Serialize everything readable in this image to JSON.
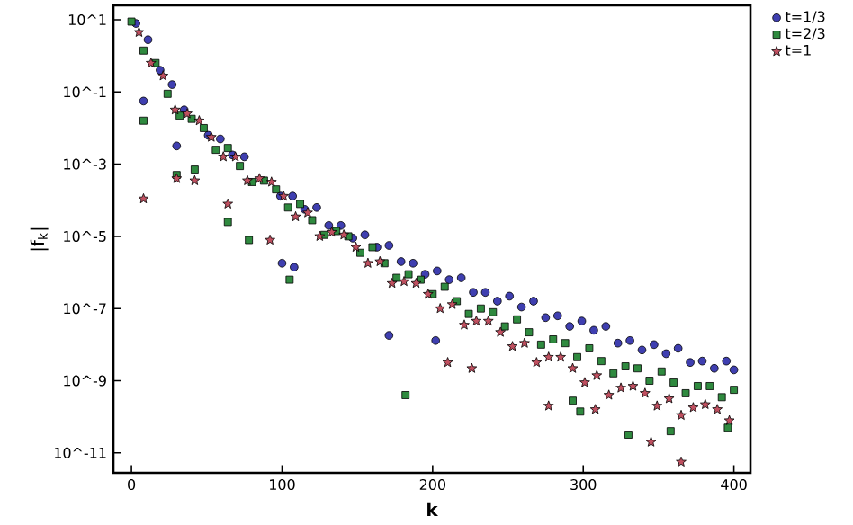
{
  "chart_data": {
    "type": "scatter",
    "xlabel": "k",
    "ylabel": "|f$_{k}$|",
    "log": "y",
    "legend": "top right",
    "grid": false,
    "xlim": [
      -12,
      411
    ],
    "xticks": [
      0,
      100,
      200,
      300,
      400
    ],
    "ylim": [
      2.8e-12,
      25
    ],
    "yticks": [
      {
        "value": 10,
        "label": "10^1"
      },
      {
        "value": 0.1,
        "label": "10^-1"
      },
      {
        "value": 0.001,
        "label": "10^-3"
      },
      {
        "value": 1e-05,
        "label": "10^-5"
      },
      {
        "value": 1e-07,
        "label": "10^-7"
      },
      {
        "value": 1e-09,
        "label": "10^-9"
      },
      {
        "value": 1e-11,
        "label": "10^-11"
      }
    ],
    "series": [
      {
        "name": "t=1/3",
        "color": "#3f3fb0",
        "marker": "circle",
        "x": [
          3,
          11,
          19,
          27,
          35,
          43,
          51,
          59,
          67,
          75,
          83,
          91,
          99,
          107,
          115,
          123,
          131,
          139,
          147,
          155,
          163,
          171,
          179,
          187,
          195,
          203,
          211,
          219,
          227,
          235,
          243,
          251,
          259,
          267,
          275,
          283,
          291,
          299,
          307,
          315,
          323,
          331,
          339,
          347,
          355,
          363,
          371,
          379,
          387,
          395,
          400,
          8,
          30,
          100,
          108,
          171,
          202
        ],
        "values": [
          7.9,
          2.8,
          0.4,
          0.16,
          0.032,
          null,
          0.0063,
          0.005,
          0.0018,
          0.0016,
          null,
          null,
          0.00013,
          0.00013,
          5.6e-05,
          6.3e-05,
          2e-05,
          2e-05,
          8.9e-06,
          1.1e-05,
          5e-06,
          5.6e-06,
          2e-06,
          1.8e-06,
          8.9e-07,
          1.1e-06,
          6.3e-07,
          7.1e-07,
          2.8e-07,
          2.8e-07,
          1.6e-07,
          2.2e-07,
          1.1e-07,
          1.6e-07,
          5.6e-08,
          6.3e-08,
          3.2e-08,
          4.5e-08,
          2.5e-08,
          3.2e-08,
          1.1e-08,
          1.3e-08,
          7.1e-09,
          1e-08,
          5.6e-09,
          7.9e-09,
          3.2e-09,
          3.5e-09,
          2.2e-09,
          3.5e-09,
          2e-09,
          0.056,
          0.0032,
          1.8e-06,
          1.4e-06,
          1.8e-08,
          1.3e-08
        ]
      },
      {
        "name": "t=2/3",
        "color": "#2f8a3f",
        "marker": "square",
        "x": [
          0,
          8,
          16,
          24,
          32,
          40,
          48,
          56,
          64,
          72,
          80,
          88,
          96,
          104,
          112,
          120,
          128,
          136,
          144,
          152,
          160,
          168,
          176,
          184,
          192,
          200,
          208,
          216,
          224,
          232,
          240,
          248,
          256,
          264,
          272,
          280,
          288,
          296,
          304,
          312,
          320,
          328,
          336,
          344,
          352,
          360,
          368,
          376,
          384,
          392,
          400,
          8,
          30,
          42,
          64,
          78,
          105,
          182,
          293,
          298,
          330,
          358,
          396
        ],
        "values": [
          8.9,
          1.4,
          0.63,
          0.089,
          0.022,
          0.018,
          0.01,
          0.0025,
          0.0028,
          0.00089,
          0.00032,
          0.00035,
          0.0002,
          6.3e-05,
          7.9e-05,
          2.8e-05,
          1.1e-05,
          1.4e-05,
          1e-05,
          3.5e-06,
          5e-06,
          1.8e-06,
          7.1e-07,
          8.9e-07,
          6.3e-07,
          2.5e-07,
          4e-07,
          1.6e-07,
          7.1e-08,
          1e-07,
          7.9e-08,
          3.2e-08,
          5e-08,
          2.2e-08,
          1e-08,
          1.4e-08,
          1.1e-08,
          4.5e-09,
          7.9e-09,
          3.5e-09,
          1.6e-09,
          2.5e-09,
          2.2e-09,
          1e-09,
          1.8e-09,
          8.9e-10,
          4.5e-10,
          7.1e-10,
          7.1e-10,
          3.5e-10,
          5.6e-10,
          0.016,
          0.0005,
          0.00071,
          2.5e-05,
          7.9e-06,
          6.3e-07,
          4e-10,
          2.8e-10,
          1.4e-10,
          3.2e-11,
          4e-11,
          5e-11
        ]
      },
      {
        "name": "t=1",
        "color": "#c05060",
        "marker": "star",
        "x": [
          5,
          13,
          21,
          29,
          37,
          45,
          53,
          61,
          69,
          77,
          85,
          93,
          101,
          109,
          117,
          125,
          133,
          141,
          149,
          157,
          165,
          173,
          181,
          189,
          197,
          205,
          213,
          221,
          229,
          237,
          245,
          253,
          261,
          269,
          277,
          285,
          293,
          301,
          309,
          317,
          325,
          333,
          341,
          349,
          357,
          365,
          373,
          381,
          389,
          397,
          8,
          30,
          42,
          64,
          92,
          210,
          226,
          277,
          308,
          345,
          365
        ],
        "values": [
          4.5,
          0.63,
          0.28,
          0.032,
          0.025,
          0.016,
          0.0056,
          0.0016,
          0.0016,
          0.00035,
          0.0004,
          0.00032,
          0.00013,
          3.5e-05,
          4.5e-05,
          1e-05,
          1.3e-05,
          1.1e-05,
          5e-06,
          1.8e-06,
          2e-06,
          5e-07,
          5.6e-07,
          5e-07,
          2.5e-07,
          1e-07,
          1.3e-07,
          3.5e-08,
          4.5e-08,
          4.5e-08,
          2.2e-08,
          8.9e-09,
          1.1e-08,
          3.2e-09,
          4.5e-09,
          4.5e-09,
          2.2e-09,
          8.9e-10,
          1.4e-09,
          4e-10,
          6.3e-10,
          7.1e-10,
          4.5e-10,
          2e-10,
          3.2e-10,
          1.1e-10,
          1.8e-10,
          2.2e-10,
          1.6e-10,
          7.9e-11,
          0.00011,
          0.0004,
          0.00035,
          7.9e-05,
          7.9e-06,
          3.2e-09,
          2.2e-09,
          2e-10,
          1.6e-10,
          2e-11,
          5.6e-12
        ]
      }
    ]
  }
}
